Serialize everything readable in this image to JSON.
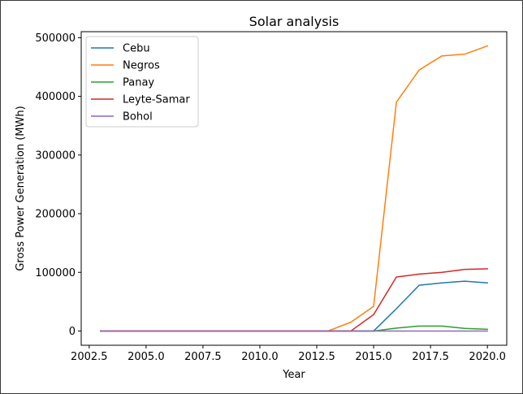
{
  "chart_data": {
    "type": "line",
    "title": "Solar analysis",
    "xlabel": "Year",
    "ylabel": "Gross Power Generation (MWh)",
    "xlim": [
      2002.15,
      2020.85
    ],
    "ylim": [
      -24300,
      510300
    ],
    "xticks": [
      2002.5,
      2005.0,
      2007.5,
      2010.0,
      2012.5,
      2015.0,
      2017.5,
      2020.0
    ],
    "xtick_labels": [
      "2002.5",
      "2005.0",
      "2007.5",
      "2010.0",
      "2012.5",
      "2015.0",
      "2017.5",
      "2020.0"
    ],
    "yticks": [
      0,
      100000,
      200000,
      300000,
      400000,
      500000
    ],
    "ytick_labels": [
      "0",
      "100000",
      "200000",
      "300000",
      "400000",
      "500000"
    ],
    "grid": false,
    "legend_position": "top-left",
    "x": [
      2003,
      2004,
      2005,
      2006,
      2007,
      2008,
      2009,
      2010,
      2011,
      2012,
      2013,
      2014,
      2015,
      2016,
      2017,
      2018,
      2019,
      2020
    ],
    "series": [
      {
        "name": "Cebu",
        "color": "#1f77b4",
        "values": [
          0,
          0,
          0,
          0,
          0,
          0,
          0,
          0,
          0,
          0,
          0,
          0,
          0,
          38000,
          78000,
          82000,
          85000,
          82000
        ]
      },
      {
        "name": "Negros",
        "color": "#ff7f0e",
        "values": [
          0,
          0,
          0,
          0,
          0,
          0,
          0,
          0,
          0,
          0,
          0,
          15000,
          42000,
          390000,
          445000,
          469000,
          472000,
          486000
        ]
      },
      {
        "name": "Panay",
        "color": "#2ca02c",
        "values": [
          0,
          0,
          0,
          0,
          0,
          0,
          0,
          0,
          0,
          0,
          0,
          0,
          0,
          5000,
          8500,
          8500,
          4500,
          3000
        ]
      },
      {
        "name": "Leyte-Samar",
        "color": "#d62728",
        "values": [
          0,
          0,
          0,
          0,
          0,
          0,
          0,
          0,
          0,
          0,
          0,
          0,
          28000,
          92000,
          97000,
          100000,
          105000,
          106000
        ]
      },
      {
        "name": "Bohol",
        "color": "#9467bd",
        "values": [
          0,
          0,
          0,
          0,
          0,
          0,
          0,
          0,
          0,
          0,
          0,
          0,
          0,
          0,
          0,
          0,
          0,
          0
        ]
      }
    ]
  }
}
